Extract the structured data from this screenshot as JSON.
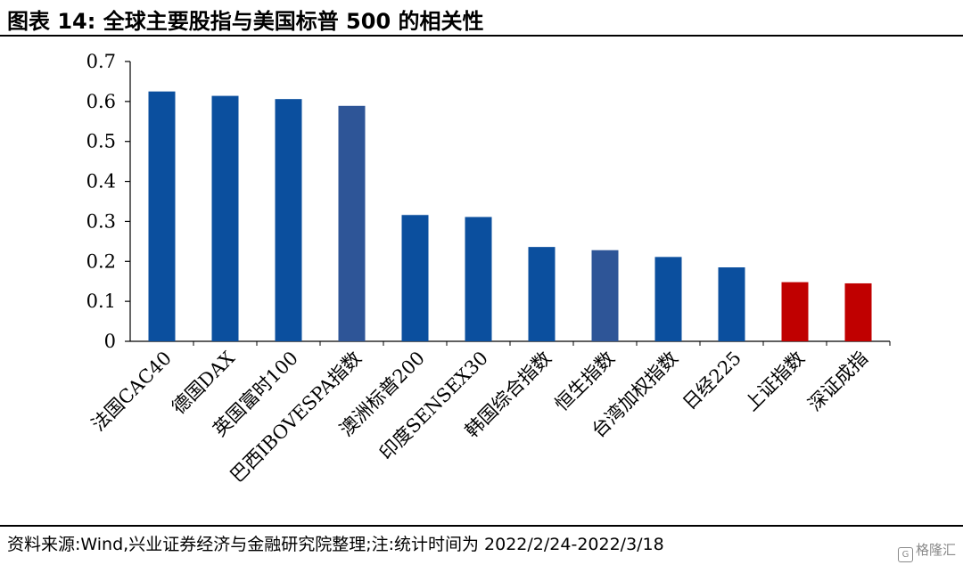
{
  "header": {
    "title": "图表 14:  全球主要股指与美国标普 500 的相关性"
  },
  "footer": {
    "source": "资料来源:Wind,兴业证券经济与金融研究院整理;注:统计时间为 2022/2/24-2022/3/18",
    "watermark": "格隆汇",
    "watermark_icon": "G"
  },
  "chart_data": {
    "type": "bar",
    "title": "",
    "xlabel": "",
    "ylabel": "",
    "ylim": [
      0,
      0.7
    ],
    "yticks": [
      "0",
      "0.1",
      "0.2",
      "0.3",
      "0.4",
      "0.5",
      "0.6",
      "0.7"
    ],
    "categories": [
      "法国CAC40",
      "德国DAX",
      "英国富时100",
      "巴西IBOVESPA指数",
      "澳洲标普200",
      "印度SENSEX30",
      "韩国综合指数",
      "恒生指数",
      "台湾加权指数",
      "日经225",
      "上证指数",
      "深证成指"
    ],
    "values": [
      0.625,
      0.614,
      0.606,
      0.589,
      0.316,
      0.311,
      0.236,
      0.228,
      0.211,
      0.185,
      0.148,
      0.145
    ],
    "colors": [
      "#0B4F9E",
      "#0B4F9E",
      "#0B4F9E",
      "#2E5597",
      "#0B4F9E",
      "#0B4F9E",
      "#0B4F9E",
      "#2E5597",
      "#0B4F9E",
      "#0B4F9E",
      "#C00000",
      "#C00000"
    ],
    "grid": false,
    "legend": "none"
  }
}
